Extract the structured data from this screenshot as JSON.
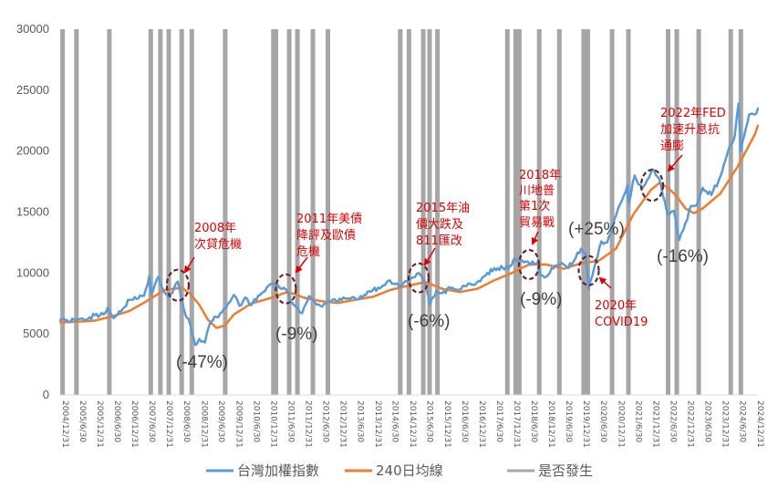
{
  "chart_data": {
    "type": "line",
    "title": "",
    "xlabel": "",
    "ylabel": "",
    "ylim": [
      0,
      30000
    ],
    "y_ticks": [
      0,
      5000,
      10000,
      15000,
      20000,
      25000,
      30000
    ],
    "grid": false,
    "x_tick_labels": [
      "2004/12/31",
      "2005/6/30",
      "2005/12/31",
      "2006/6/30",
      "2006/12/31",
      "2007/6/30",
      "2007/12/31",
      "2008/6/30",
      "2008/12/31",
      "2009/6/30",
      "2009/12/31",
      "2010/6/30",
      "2010/12/31",
      "2011/6/30",
      "2011/12/31",
      "2012/6/30",
      "2012/12/31",
      "2013/6/30",
      "2013/12/31",
      "2014/6/30",
      "2014/12/31",
      "2015/6/30",
      "2015/12/31",
      "2016/6/30",
      "2016/12/31",
      "2017/6/30",
      "2017/12/31",
      "2018/6/30",
      "2018/12/31",
      "2019/6/30",
      "2019/12/31",
      "2020/6/30",
      "2020/12/31",
      "2021/6/30",
      "2021/12/31",
      "2022/6/30",
      "2022/12/31",
      "2023/6/30",
      "2023/12/31",
      "2024/6/30",
      "2024/12/31"
    ],
    "legend_position": "bottom",
    "series": [
      {
        "name": "台灣加權指數",
        "color": "#5b9bd5",
        "points": [
          [
            "2004/12/31",
            6140
          ],
          [
            "2005/3/31",
            6000
          ],
          [
            "2005/6/30",
            6250
          ],
          [
            "2005/9/30",
            6150
          ],
          [
            "2005/12/31",
            6550
          ],
          [
            "2006/3/31",
            6600
          ],
          [
            "2006/5/15",
            7150
          ],
          [
            "2006/7/15",
            6300
          ],
          [
            "2006/9/30",
            6850
          ],
          [
            "2006/12/31",
            7800
          ],
          [
            "2007/3/31",
            7900
          ],
          [
            "2007/5/31",
            8150
          ],
          [
            "2007/7/26",
            9750
          ],
          [
            "2007/8/17",
            8200
          ],
          [
            "2007/10/31",
            9700
          ],
          [
            "2007/12/31",
            8400
          ],
          [
            "2008/2/15",
            8000
          ],
          [
            "2008/5/20",
            9300
          ],
          [
            "2008/7/15",
            7300
          ],
          [
            "2008/9/30",
            5700
          ],
          [
            "2008/11/20",
            4100
          ],
          [
            "2008/12/31",
            4600
          ],
          [
            "2009/3/2",
            4300
          ],
          [
            "2009/4/30",
            6000
          ],
          [
            "2009/6/30",
            6400
          ],
          [
            "2009/8/31",
            6800
          ],
          [
            "2009/10/31",
            7500
          ],
          [
            "2009/12/31",
            8200
          ],
          [
            "2010/2/28",
            7300
          ],
          [
            "2010/4/30",
            8000
          ],
          [
            "2010/6/30",
            7350
          ],
          [
            "2010/9/30",
            8200
          ],
          [
            "2010/12/31",
            8950
          ],
          [
            "2011/2/10",
            9150
          ],
          [
            "2011/4/30",
            8750
          ],
          [
            "2011/6/30",
            8650
          ],
          [
            "2011/8/31",
            7600
          ],
          [
            "2011/10/31",
            7200
          ],
          [
            "2011/12/19",
            6700
          ],
          [
            "2012/2/29",
            8100
          ],
          [
            "2012/4/30",
            7600
          ],
          [
            "2012/6/30",
            7300
          ],
          [
            "2012/9/30",
            7700
          ],
          [
            "2012/12/31",
            7700
          ],
          [
            "2013/3/31",
            7900
          ],
          [
            "2013/6/30",
            7900
          ],
          [
            "2013/9/30",
            8200
          ],
          [
            "2013/12/31",
            8600
          ],
          [
            "2014/3/31",
            8850
          ],
          [
            "2014/6/30",
            9400
          ],
          [
            "2014/9/30",
            8950
          ],
          [
            "2014/12/31",
            9300
          ],
          [
            "2015/4/27",
            10000
          ],
          [
            "2015/6/30",
            9300
          ],
          [
            "2015/8/24",
            7400
          ],
          [
            "2015/10/31",
            8550
          ],
          [
            "2015/12/31",
            8350
          ],
          [
            "2016/3/31",
            8750
          ],
          [
            "2016/6/30",
            8650
          ],
          [
            "2016/9/30",
            9150
          ],
          [
            "2016/12/31",
            9250
          ],
          [
            "2017/3/31",
            9800
          ],
          [
            "2017/6/30",
            10400
          ],
          [
            "2017/9/30",
            10400
          ],
          [
            "2017/12/31",
            10650
          ],
          [
            "2018/1/31",
            11200
          ],
          [
            "2018/3/31",
            10900
          ],
          [
            "2018/6/30",
            10850
          ],
          [
            "2018/9/30",
            10900
          ],
          [
            "2018/10/31",
            9800
          ],
          [
            "2018/12/31",
            9700
          ],
          [
            "2019/3/31",
            10600
          ],
          [
            "2019/6/30",
            10700
          ],
          [
            "2019/8/15",
            10400
          ],
          [
            "2019/12/31",
            12000
          ],
          [
            "2020/2/15",
            11600
          ],
          [
            "2020/3/19",
            8700
          ],
          [
            "2020/5/31",
            10900
          ],
          [
            "2020/7/31",
            12600
          ],
          [
            "2020/9/30",
            12500
          ],
          [
            "2020/12/31",
            14700
          ],
          [
            "2021/2/28",
            15900
          ],
          [
            "2021/4/30",
            17200
          ],
          [
            "2021/5/15",
            15700
          ],
          [
            "2021/7/15",
            18000
          ],
          [
            "2021/9/30",
            16900
          ],
          [
            "2021/12/31",
            18200
          ],
          [
            "2022/1/15",
            18500
          ],
          [
            "2022/3/31",
            17700
          ],
          [
            "2022/6/30",
            14800
          ],
          [
            "2022/8/31",
            15100
          ],
          [
            "2022/10/25",
            12700
          ],
          [
            "2022/12/31",
            14100
          ],
          [
            "2023/2/28",
            15500
          ],
          [
            "2023/4/30",
            15600
          ],
          [
            "2023/6/30",
            17000
          ],
          [
            "2023/9/30",
            16400
          ],
          [
            "2023/12/31",
            17900
          ],
          [
            "2024/3/31",
            20200
          ],
          [
            "2024/5/31",
            21200
          ],
          [
            "2024/7/11",
            23900
          ],
          [
            "2024/8/5",
            20000
          ],
          [
            "2024/10/31",
            23000
          ],
          [
            "2024/12/31",
            23000
          ],
          [
            "2025/1/31",
            23500
          ]
        ]
      },
      {
        "name": "240日均線",
        "color": "#ed7d31",
        "points": [
          [
            "2004/12/31",
            5950
          ],
          [
            "2005/6/30",
            6000
          ],
          [
            "2005/12/31",
            6100
          ],
          [
            "2006/6/30",
            6450
          ],
          [
            "2006/12/31",
            6900
          ],
          [
            "2007/6/30",
            7700
          ],
          [
            "2007/12/31",
            8600
          ],
          [
            "2008/6/30",
            8800
          ],
          [
            "2008/9/30",
            8300
          ],
          [
            "2008/12/31",
            7400
          ],
          [
            "2009/3/31",
            6200
          ],
          [
            "2009/6/30",
            5500
          ],
          [
            "2009/9/30",
            5700
          ],
          [
            "2009/12/31",
            6600
          ],
          [
            "2010/6/30",
            7500
          ],
          [
            "2010/12/31",
            7900
          ],
          [
            "2011/6/30",
            8400
          ],
          [
            "2011/9/30",
            8300
          ],
          [
            "2011/12/31",
            8000
          ],
          [
            "2012/6/30",
            7700
          ],
          [
            "2012/12/31",
            7550
          ],
          [
            "2013/6/30",
            7800
          ],
          [
            "2013/12/31",
            8050
          ],
          [
            "2014/6/30",
            8600
          ],
          [
            "2014/12/31",
            8950
          ],
          [
            "2015/6/30",
            9250
          ],
          [
            "2015/9/30",
            9000
          ],
          [
            "2015/12/31",
            8700
          ],
          [
            "2016/6/30",
            8450
          ],
          [
            "2016/12/31",
            8700
          ],
          [
            "2017/6/30",
            9400
          ],
          [
            "2017/12/31",
            10000
          ],
          [
            "2018/6/30",
            10700
          ],
          [
            "2018/12/31",
            10700
          ],
          [
            "2019/6/30",
            10350
          ],
          [
            "2019/12/31",
            10800
          ],
          [
            "2020/6/30",
            11000
          ],
          [
            "2020/12/31",
            12000
          ],
          [
            "2021/6/30",
            14800
          ],
          [
            "2021/12/31",
            16800
          ],
          [
            "2022/3/31",
            17400
          ],
          [
            "2022/6/30",
            17000
          ],
          [
            "2022/9/30",
            16300
          ],
          [
            "2022/12/31",
            15300
          ],
          [
            "2023/3/31",
            14900
          ],
          [
            "2023/6/30",
            15300
          ],
          [
            "2023/12/31",
            16500
          ],
          [
            "2024/6/30",
            18700
          ],
          [
            "2024/12/31",
            21400
          ],
          [
            "2025/1/31",
            22100
          ]
        ]
      },
      {
        "name": "是否發生",
        "color": "#a6a6a6",
        "bars": [
          "2005/1/25",
          "2005/6/20",
          "2006/6/1",
          "2007/8/10",
          "2007/11/20",
          "2008/2/15",
          "2008/6/30",
          "2008/10/15",
          "2009/10/1",
          "2011/2/20",
          "2011/3/18",
          "2011/8/5",
          "2011/10/30",
          "2012/4/10",
          "2012/9/15",
          "2014/10/15",
          "2015/1/15",
          "2015/6/15",
          "2015/8/20",
          "2015/11/10",
          "2017/11/15",
          "2018/2/10",
          "2018/3/20",
          "2018/10/15",
          "2019/5/15",
          "2020/1/25",
          "2020/3/10",
          "2020/11/20",
          "2021/5/10",
          "2022/7/1",
          "2022/10/1",
          "2023/5/20",
          "2024/4/20",
          "2024/8/5"
        ]
      }
    ],
    "annotations": [
      {
        "lines": [
          "2008年",
          "次貸危機"
        ],
        "color": "#e00000"
      },
      {
        "lines": [
          "2011年美債",
          "降評及歐債",
          "危機"
        ],
        "color": "#e00000"
      },
      {
        "lines": [
          "2015年油",
          "價大跌及",
          "811匯改"
        ],
        "color": "#e00000"
      },
      {
        "lines": [
          "2018年",
          "川地普",
          "第1次",
          "貿易戰"
        ],
        "color": "#e00000"
      },
      {
        "lines": [
          "2020年",
          "COVID19"
        ],
        "color": "#e00000"
      },
      {
        "lines": [
          "2022年FED",
          "加速升息抗",
          "通膨"
        ],
        "color": "#e00000"
      }
    ],
    "drawdowns": [
      "(-47%)",
      "(-9%)",
      "(-6%)",
      "(-9%)",
      "(+25%)",
      "(-16%)"
    ]
  }
}
